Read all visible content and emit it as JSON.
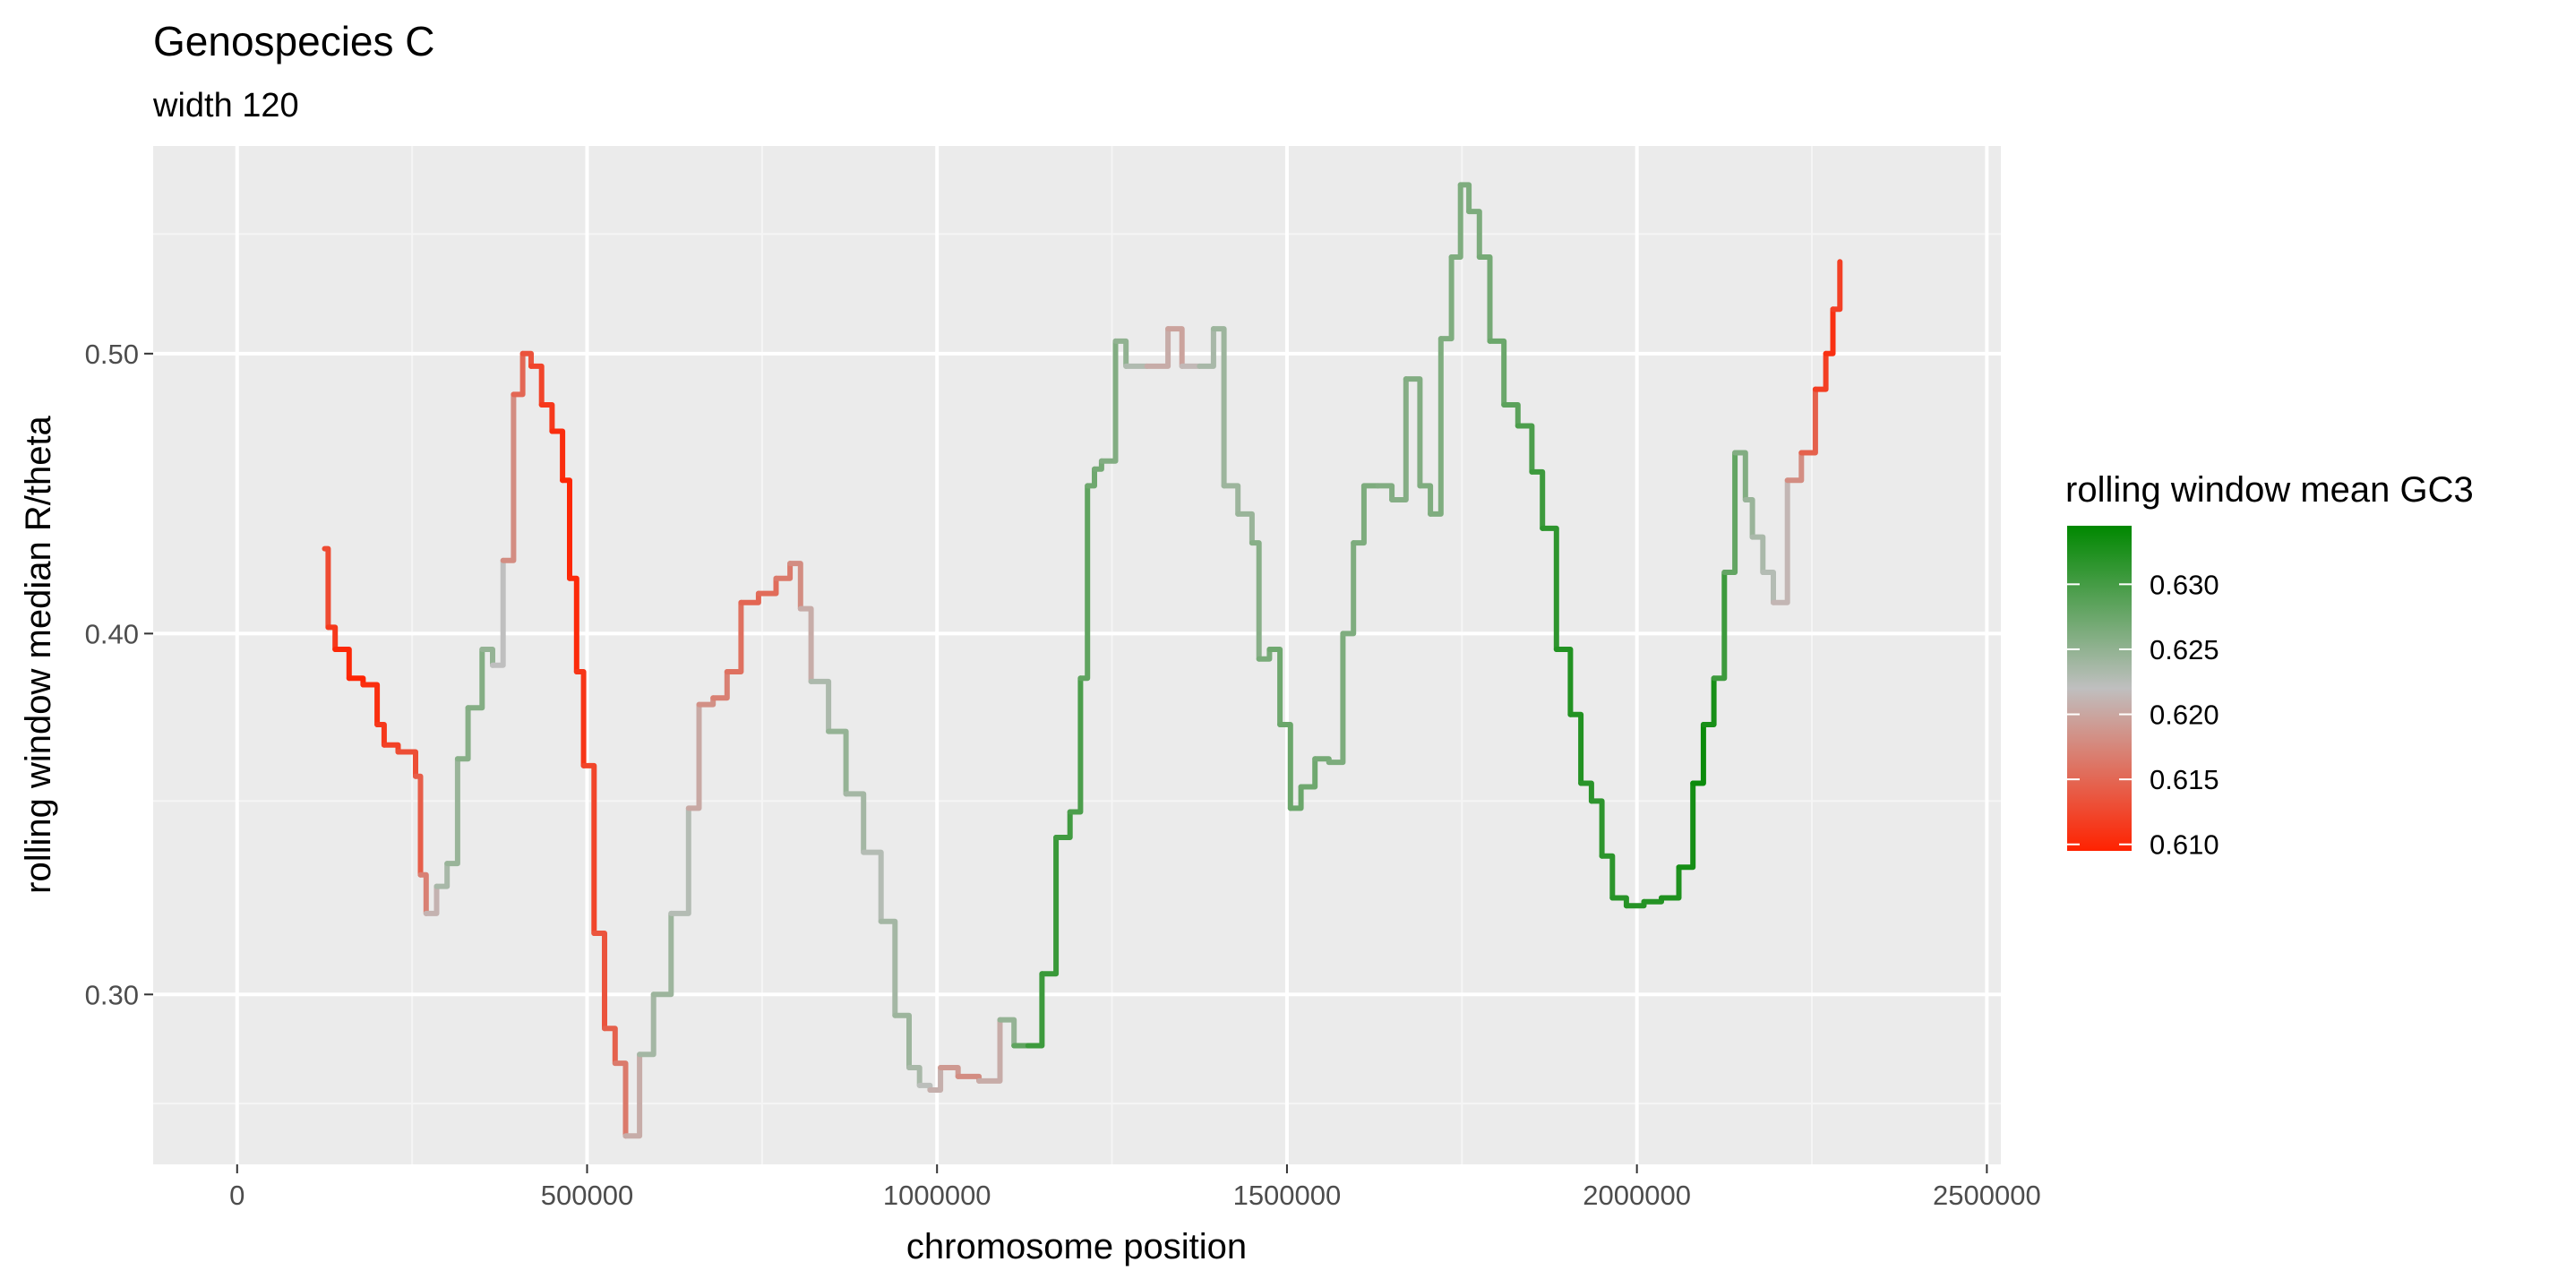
{
  "chart_data": {
    "type": "line",
    "title": "Genospecies C",
    "subtitle": "width 120",
    "xlabel": "chromosome position",
    "ylabel": "rolling window median R/theta",
    "x_ticks": [
      0,
      500000,
      1000000,
      1500000,
      2000000,
      2500000
    ],
    "x_tick_labels": [
      "0",
      "500000",
      "1000000",
      "1500000",
      "2000000",
      "2500000"
    ],
    "y_ticks": [
      0.3,
      0.4,
      0.5
    ],
    "y_tick_labels": [
      "0.30",
      "0.40",
      "0.50"
    ],
    "y_scale": "log",
    "xlim": [
      -120000,
      2520000
    ],
    "ylim": [
      0.262,
      0.59
    ],
    "grid": true,
    "legend": {
      "title": "rolling window mean GC3",
      "placement": "right",
      "type": "colorbar",
      "range": [
        0.6095,
        0.6345
      ],
      "ticks": [
        0.61,
        0.615,
        0.62,
        0.625,
        0.63
      ],
      "tick_labels": [
        "0.610",
        "0.615",
        "0.620",
        "0.625",
        "0.630"
      ],
      "colors": [
        "#ff2200",
        "#bfbfbf",
        "#008800"
      ]
    },
    "series": [
      {
        "x": [
          125000,
          130000,
          140000,
          160000,
          180000,
          200000,
          210000,
          230000,
          255000,
          262000,
          270000,
          285000,
          300000,
          315000,
          330000,
          350000,
          365000,
          380000,
          395000,
          408000,
          420000,
          435000,
          450000,
          465000,
          475000,
          485000,
          495000,
          510000,
          525000,
          540000,
          555000,
          575000,
          595000,
          620000,
          645000,
          660000,
          680000,
          700000,
          720000,
          745000,
          770000,
          790000,
          805000,
          820000,
          845000,
          870000,
          895000,
          920000,
          940000,
          960000,
          975000,
          990000,
          1005000,
          1030000,
          1060000,
          1090000,
          1110000,
          1130000,
          1150000,
          1170000,
          1190000,
          1205000,
          1215000,
          1225000,
          1235000,
          1255000,
          1270000,
          1300000,
          1330000,
          1350000,
          1375000,
          1395000,
          1410000,
          1430000,
          1450000,
          1460000,
          1475000,
          1490000,
          1505000,
          1520000,
          1540000,
          1560000,
          1580000,
          1595000,
          1610000,
          1630000,
          1650000,
          1670000,
          1690000,
          1705000,
          1720000,
          1735000,
          1748000,
          1760000,
          1775000,
          1790000,
          1810000,
          1830000,
          1850000,
          1865000,
          1885000,
          1905000,
          1920000,
          1935000,
          1950000,
          1965000,
          1985000,
          2010000,
          2035000,
          2060000,
          2080000,
          2095000,
          2110000,
          2125000,
          2140000,
          2155000,
          2165000,
          2180000,
          2195000,
          2215000,
          2235000,
          2255000,
          2270000,
          2280000,
          2290000
        ],
        "y": [
          0.428,
          0.402,
          0.395,
          0.386,
          0.384,
          0.372,
          0.366,
          0.364,
          0.357,
          0.33,
          0.32,
          0.327,
          0.333,
          0.362,
          0.377,
          0.395,
          0.39,
          0.424,
          0.484,
          0.5,
          0.495,
          0.48,
          0.47,
          0.452,
          0.418,
          0.388,
          0.36,
          0.315,
          0.292,
          0.284,
          0.268,
          0.286,
          0.3,
          0.32,
          0.348,
          0.378,
          0.38,
          0.388,
          0.41,
          0.413,
          0.418,
          0.423,
          0.408,
          0.385,
          0.37,
          0.352,
          0.336,
          0.318,
          0.295,
          0.283,
          0.279,
          0.278,
          0.283,
          0.281,
          0.28,
          0.294,
          0.288,
          0.288,
          0.305,
          0.34,
          0.347,
          0.386,
          0.45,
          0.456,
          0.459,
          0.505,
          0.495,
          0.495,
          0.51,
          0.495,
          0.495,
          0.51,
          0.45,
          0.44,
          0.43,
          0.392,
          0.395,
          0.372,
          0.348,
          0.354,
          0.362,
          0.361,
          0.4,
          0.43,
          0.45,
          0.45,
          0.445,
          0.49,
          0.45,
          0.44,
          0.506,
          0.54,
          0.572,
          0.56,
          0.54,
          0.505,
          0.48,
          0.472,
          0.455,
          0.435,
          0.395,
          0.375,
          0.355,
          0.35,
          0.335,
          0.324,
          0.322,
          0.323,
          0.324,
          0.332,
          0.355,
          0.372,
          0.386,
          0.42,
          0.462,
          0.445,
          0.432,
          0.42,
          0.41,
          0.452,
          0.462,
          0.486,
          0.5,
          0.518,
          0.538
        ],
        "gc3": [
          0.6135,
          0.612,
          0.6105,
          0.6095,
          0.61,
          0.611,
          0.6115,
          0.6125,
          0.6135,
          0.615,
          0.619,
          0.623,
          0.624,
          0.625,
          0.6262,
          0.6255,
          0.624,
          0.62,
          0.616,
          0.614,
          0.6128,
          0.6118,
          0.6108,
          0.61,
          0.6098,
          0.6105,
          0.6115,
          0.613,
          0.614,
          0.615,
          0.618,
          0.623,
          0.6245,
          0.624,
          0.6215,
          0.619,
          0.6175,
          0.6165,
          0.615,
          0.6148,
          0.616,
          0.617,
          0.619,
          0.622,
          0.6245,
          0.625,
          0.6225,
          0.623,
          0.6245,
          0.624,
          0.623,
          0.6215,
          0.62,
          0.618,
          0.618,
          0.623,
          0.6265,
          0.63,
          0.631,
          0.6305,
          0.63,
          0.629,
          0.6275,
          0.627,
          0.6265,
          0.6255,
          0.6245,
          0.6215,
          0.6195,
          0.62,
          0.623,
          0.624,
          0.6245,
          0.624,
          0.625,
          0.6262,
          0.627,
          0.6275,
          0.6275,
          0.6275,
          0.627,
          0.6265,
          0.6262,
          0.6262,
          0.6265,
          0.6262,
          0.6258,
          0.6258,
          0.6262,
          0.6262,
          0.6262,
          0.6262,
          0.6262,
          0.6262,
          0.6265,
          0.627,
          0.628,
          0.629,
          0.63,
          0.631,
          0.632,
          0.6325,
          0.632,
          0.6315,
          0.6315,
          0.6318,
          0.632,
          0.632,
          0.6322,
          0.6328,
          0.6335,
          0.634,
          0.632,
          0.629,
          0.627,
          0.625,
          0.6238,
          0.623,
          0.6225,
          0.62,
          0.616,
          0.613,
          0.6105,
          0.6108,
          0.613
        ]
      }
    ]
  }
}
